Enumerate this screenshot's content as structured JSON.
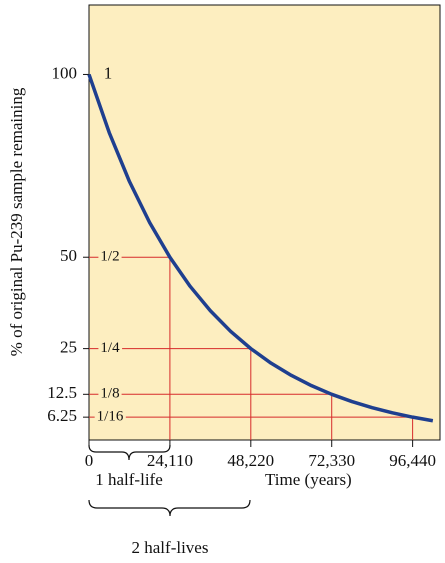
{
  "chart_data": {
    "type": "line",
    "x_label": "Time (years)",
    "y_label": "% of original Pu-239 sample remaining",
    "x": [
      0,
      6027.5,
      12055,
      18082.5,
      24110,
      30137.5,
      36165,
      42192.5,
      48220,
      54247.5,
      60275,
      66302.5,
      72330,
      78357.5,
      84385,
      90412.5,
      96440,
      102467.5
    ],
    "series": [
      {
        "color": "#1f3f8f",
        "values": [
          100,
          84.09,
          70.71,
          59.46,
          50,
          42.04,
          35.36,
          29.73,
          25,
          21.02,
          17.68,
          14.87,
          12.5,
          10.51,
          8.84,
          7.43,
          6.25,
          5.26
        ]
      }
    ],
    "xlim": [
      0,
      104600
    ],
    "ylim": [
      0,
      119
    ],
    "xticks": [
      0,
      {
        "value": 24110,
        "label": "24,110"
      },
      {
        "value": 48220,
        "label": "48,220"
      },
      {
        "value": 72330,
        "label": "72,330"
      },
      {
        "value": 96440,
        "label": "96,440"
      }
    ],
    "yticks": [
      100,
      50,
      25,
      12.5,
      6.25
    ],
    "fraction_labels": [
      "1",
      "1/2",
      "1/4",
      "1/8",
      "1/16"
    ],
    "reference_line_color": "#d62a2a",
    "plot_background": "#fdeec0",
    "annotations": [
      "1 half-life",
      "2 half-lives"
    ]
  }
}
